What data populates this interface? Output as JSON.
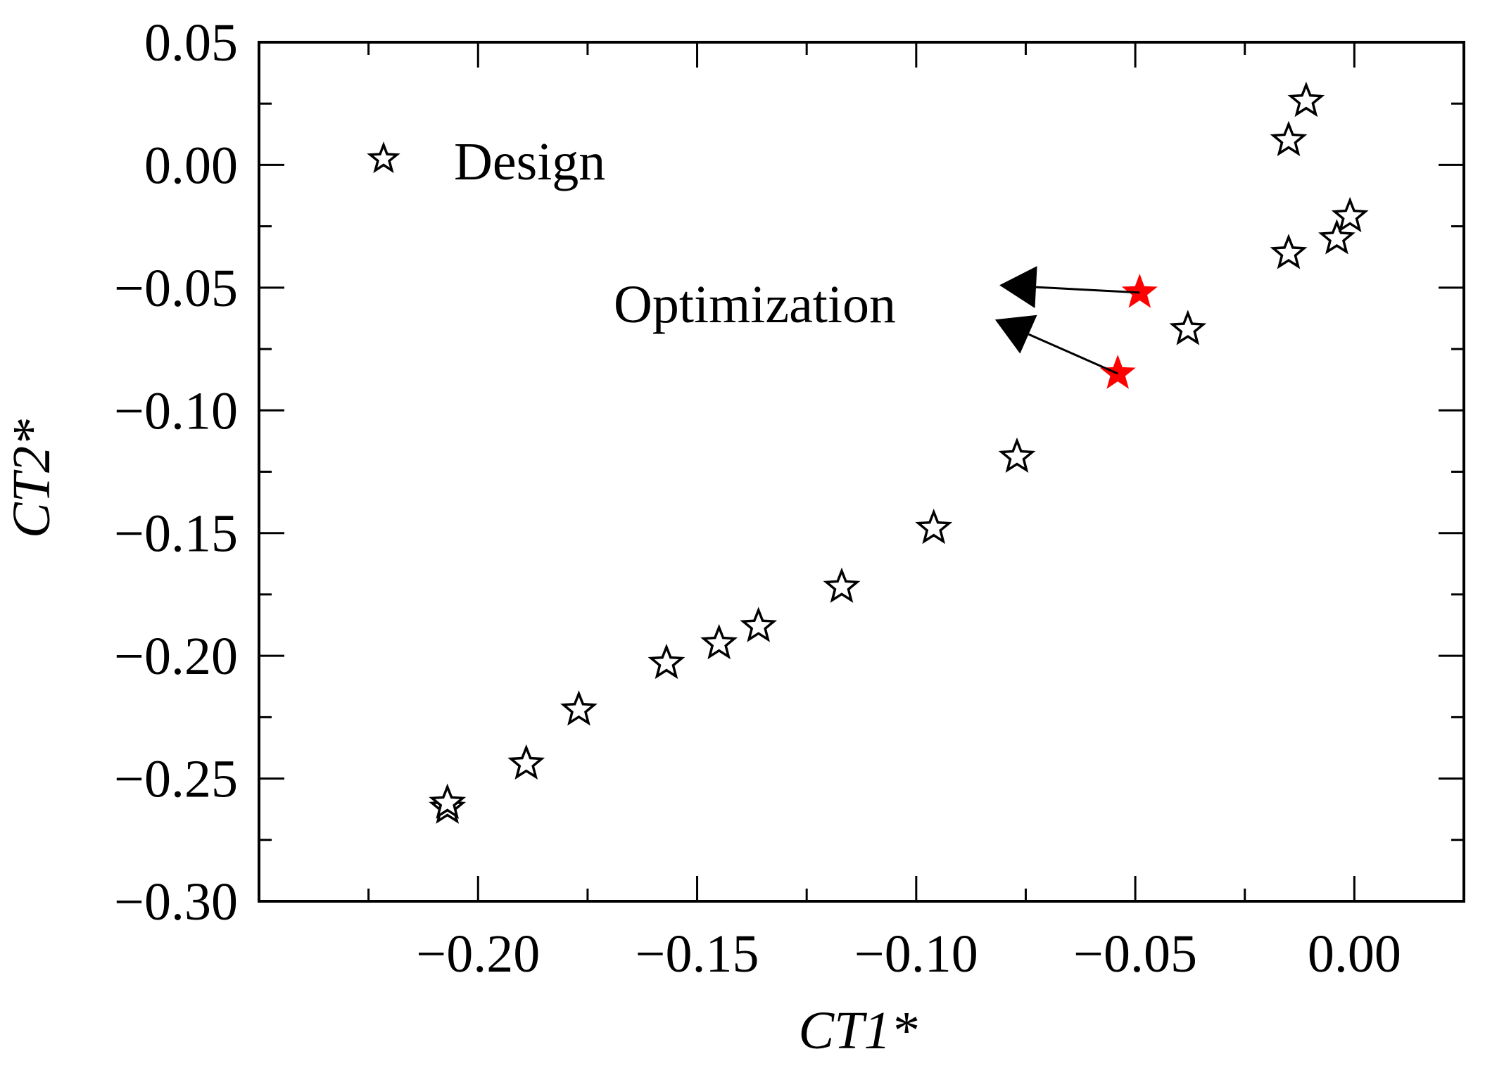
{
  "chart_data": {
    "type": "scatter",
    "title": "",
    "xlabel": "CT1*",
    "ylabel": "CT2*",
    "xlim": [
      -0.25,
      0.025
    ],
    "ylim": [
      -0.3,
      0.05
    ],
    "xticks": [
      -0.2,
      -0.15,
      -0.1,
      -0.05,
      0.0
    ],
    "xtick_labels": [
      "−0.20",
      "−0.15",
      "−0.10",
      "−0.05",
      "0.00"
    ],
    "yticks": [
      0.05,
      0.0,
      -0.05,
      -0.1,
      -0.15,
      -0.2,
      -0.25,
      -0.3
    ],
    "ytick_labels": [
      "0.05",
      "0.00",
      "−0.05",
      "−0.10",
      "−0.15",
      "−0.20",
      "−0.25",
      "−0.30"
    ],
    "grid": false,
    "legend": {
      "position": "top-left",
      "entries": [
        "Design"
      ]
    },
    "series": [
      {
        "name": "Design",
        "marker": "star-open",
        "color": "#000000",
        "points": [
          {
            "x": -0.207,
            "y": -0.262
          },
          {
            "x": -0.207,
            "y": -0.26
          },
          {
            "x": -0.189,
            "y": -0.244
          },
          {
            "x": -0.177,
            "y": -0.222
          },
          {
            "x": -0.157,
            "y": -0.203
          },
          {
            "x": -0.145,
            "y": -0.195
          },
          {
            "x": -0.136,
            "y": -0.188
          },
          {
            "x": -0.117,
            "y": -0.172
          },
          {
            "x": -0.096,
            "y": -0.148
          },
          {
            "x": -0.077,
            "y": -0.119
          },
          {
            "x": -0.038,
            "y": -0.067
          },
          {
            "x": -0.015,
            "y": -0.036
          },
          {
            "x": -0.004,
            "y": -0.03
          },
          {
            "x": -0.001,
            "y": -0.021
          },
          {
            "x": -0.015,
            "y": 0.01
          },
          {
            "x": -0.011,
            "y": 0.026
          }
        ]
      },
      {
        "name": "Optimization",
        "marker": "star-filled",
        "color": "#ff0000",
        "points": [
          {
            "x": -0.049,
            "y": -0.052
          },
          {
            "x": -0.054,
            "y": -0.085
          }
        ]
      }
    ],
    "annotation": {
      "text": "Optimization",
      "arrows": [
        {
          "from": {
            "x": -0.049,
            "y": -0.052
          },
          "to": {
            "x": -0.081,
            "y": -0.049
          }
        },
        {
          "from": {
            "x": -0.054,
            "y": -0.085
          },
          "to": {
            "x": -0.082,
            "y": -0.063
          }
        }
      ]
    }
  }
}
